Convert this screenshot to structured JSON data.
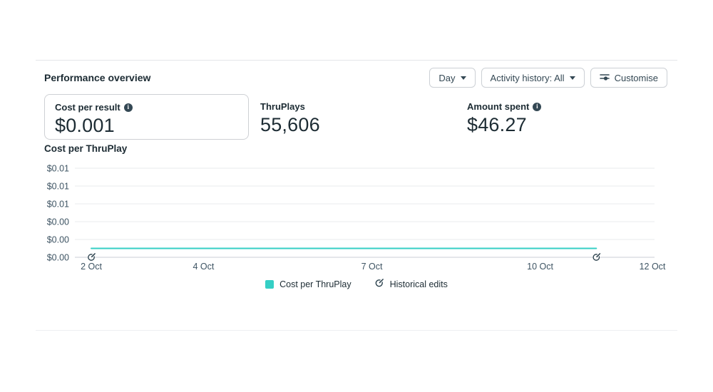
{
  "header": {
    "title": "Performance overview",
    "controls": {
      "day": {
        "label": "Day"
      },
      "activity_history": {
        "label": "Activity history: All"
      },
      "customise": {
        "label": "Customise",
        "icon": "customise-sliders-icon"
      }
    }
  },
  "metrics": [
    {
      "label": "Cost per result",
      "value": "$0.001",
      "has_info_icon": true,
      "selected": true
    },
    {
      "label": "ThruPlays",
      "value": "55,606",
      "has_info_icon": false,
      "selected": false
    },
    {
      "label": "Amount spent",
      "value": "$46.27",
      "has_info_icon": true,
      "selected": false
    }
  ],
  "chart_data": {
    "type": "line",
    "title": "Cost per ThruPlay",
    "xlabel": "",
    "ylabel": "",
    "ylim": [
      0,
      0.01
    ],
    "grid": true,
    "y_ticks": [
      {
        "value": 0.01,
        "label": "$0.01"
      },
      {
        "value": 0.008,
        "label": "$0.01"
      },
      {
        "value": 0.006,
        "label": "$0.01"
      },
      {
        "value": 0.004,
        "label": "$0.00"
      },
      {
        "value": 0.002,
        "label": "$0.00"
      },
      {
        "value": 0.0,
        "label": "$0.00"
      }
    ],
    "x_ticks": [
      {
        "day": 0,
        "label": "2 Oct"
      },
      {
        "day": 2,
        "label": "4 Oct"
      },
      {
        "day": 5,
        "label": "7 Oct"
      },
      {
        "day": 8,
        "label": "10 Oct"
      },
      {
        "day": 10,
        "label": "12 Oct"
      }
    ],
    "series": [
      {
        "name": "Cost per ThruPlay",
        "color": "#35cfc5",
        "points": [
          {
            "day": 0,
            "value": 0.001
          },
          {
            "day": 9,
            "value": 0.001
          }
        ]
      }
    ],
    "historical_edits": [
      {
        "day": 0
      },
      {
        "day": 9
      }
    ],
    "legend": [
      {
        "kind": "swatch",
        "label": "Cost per ThruPlay"
      },
      {
        "kind": "icon",
        "label": "Historical edits"
      }
    ],
    "legend_position": "bottom-center"
  },
  "colors": {
    "accent_teal": "#35cfc5",
    "text_dark": "#1c2b33",
    "text_gray": "#3e5463",
    "border": "#ced0d4"
  }
}
